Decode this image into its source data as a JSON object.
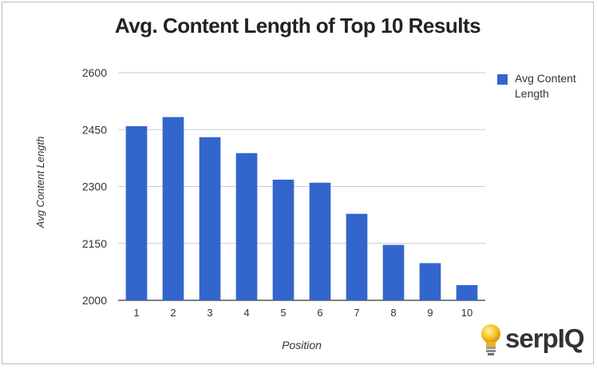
{
  "chart_data": {
    "type": "bar",
    "title": "Avg. Content Length of Top 10 Results",
    "xlabel": "Position",
    "ylabel": "Avg Content Length",
    "categories": [
      "1",
      "2",
      "3",
      "4",
      "5",
      "6",
      "7",
      "8",
      "9",
      "10"
    ],
    "series": [
      {
        "name": "Avg Content Length",
        "values": [
          2459,
          2483,
          2430,
          2388,
          2318,
          2310,
          2228,
          2146,
          2098,
          2040
        ]
      }
    ],
    "ylim": [
      2000,
      2600
    ],
    "yticks": [
      "2000",
      "2150",
      "2300",
      "2450",
      "2600"
    ],
    "grid": true,
    "legend_position": "right",
    "colors": {
      "bar": "#3366cc",
      "grid": "#cccccc"
    }
  },
  "logo": {
    "text": "serpIQ"
  }
}
